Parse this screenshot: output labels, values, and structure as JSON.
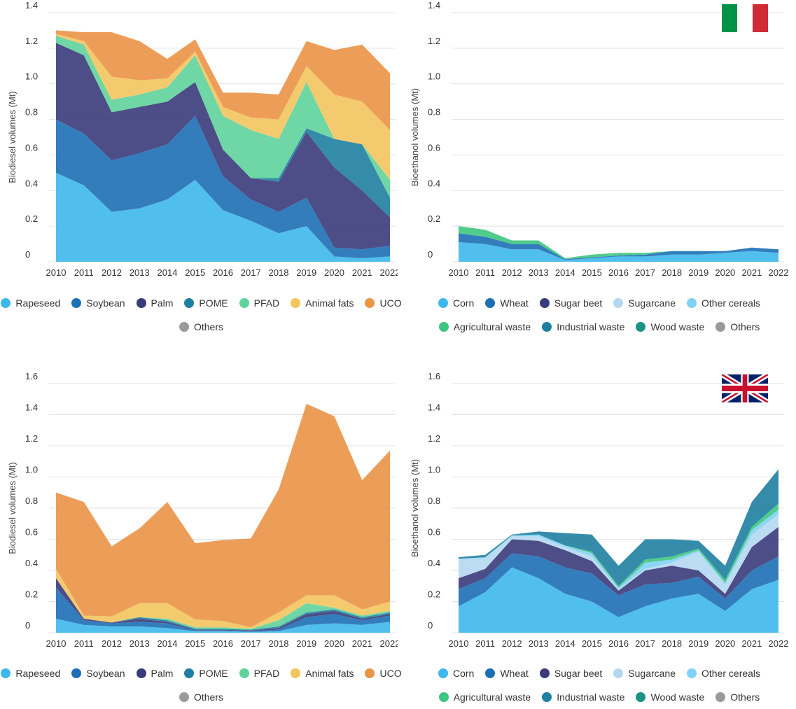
{
  "colors": {
    "Rapeseed": "#3eb8ec",
    "Soybean": "#1d6fb5",
    "Palm": "#3a3b7a",
    "POME": "#1f7fa1",
    "PFAD": "#5fd39b",
    "Animal fats": "#f2c55e",
    "UCO": "#ea9447",
    "Others": "#9a9a9a",
    "Corn": "#3eb8ec",
    "Wheat": "#1d6fb5",
    "Sugar beet": "#3a3b7a",
    "Sugarcane": "#b5d8f2",
    "Other cereals": "#7fd3f5",
    "Agricultural waste": "#3dc67f",
    "Industrial waste": "#1f7fa1",
    "Wood waste": "#1a9482"
  },
  "legend_biodiesel": {
    "row1": [
      "Rapeseed",
      "Soybean",
      "Palm",
      "POME",
      "PFAD",
      "Animal fats",
      "UCO"
    ],
    "row2": [
      "Others"
    ]
  },
  "legend_bioethanol": {
    "row1": [
      "Corn",
      "Wheat",
      "Sugar beet",
      "Sugarcane",
      "Other cereals"
    ],
    "row2": [
      "Agricultural waste",
      "Industrial waste",
      "Wood waste",
      "Others"
    ]
  },
  "chart_data": [
    {
      "type": "area",
      "ylabel": "Biodiesel volumes (Mt)",
      "ylim": [
        0,
        1.4
      ],
      "yticks": [
        "0",
        "0.2",
        "0.4",
        "0.6",
        "0.8",
        "1.0",
        "1.2",
        "1.4"
      ],
      "grid": true,
      "x": [
        "2010",
        "2011",
        "2012",
        "2013",
        "2014",
        "2015",
        "2016",
        "2017",
        "2018",
        "2019",
        "2020",
        "2021",
        "2022"
      ],
      "series": [
        {
          "name": "Rapeseed",
          "values": [
            0.5,
            0.43,
            0.28,
            0.3,
            0.35,
            0.46,
            0.29,
            0.23,
            0.16,
            0.2,
            0.03,
            0.02,
            0.03
          ]
        },
        {
          "name": "Soybean",
          "values": [
            0.3,
            0.29,
            0.29,
            0.31,
            0.31,
            0.36,
            0.19,
            0.12,
            0.12,
            0.16,
            0.05,
            0.05,
            0.06
          ]
        },
        {
          "name": "Palm",
          "values": [
            0.43,
            0.44,
            0.27,
            0.26,
            0.24,
            0.19,
            0.15,
            0.12,
            0.17,
            0.37,
            0.45,
            0.33,
            0.16
          ]
        },
        {
          "name": "POME",
          "values": [
            0.0,
            0.0,
            0.0,
            0.0,
            0.0,
            0.0,
            0.0,
            0.0,
            0.02,
            0.02,
            0.16,
            0.26,
            0.11
          ]
        },
        {
          "name": "PFAD",
          "values": [
            0.04,
            0.06,
            0.07,
            0.07,
            0.08,
            0.15,
            0.19,
            0.27,
            0.22,
            0.26,
            0.0,
            0.0,
            0.1
          ]
        },
        {
          "name": "Animal fats",
          "values": [
            0.01,
            0.02,
            0.13,
            0.08,
            0.05,
            0.02,
            0.05,
            0.07,
            0.11,
            0.09,
            0.25,
            0.24,
            0.28
          ]
        },
        {
          "name": "UCO",
          "values": [
            0.02,
            0.05,
            0.25,
            0.22,
            0.11,
            0.07,
            0.08,
            0.14,
            0.14,
            0.14,
            0.25,
            0.32,
            0.32
          ]
        },
        {
          "name": "Others",
          "values": [
            0,
            0,
            0,
            0,
            0,
            0,
            0,
            0,
            0,
            0,
            0,
            0,
            0
          ]
        }
      ]
    },
    {
      "type": "area",
      "ylabel": "Bioethanol volumes (Mt)",
      "ylim": [
        0,
        1.4
      ],
      "yticks": [
        "0",
        "0.2",
        "0.4",
        "0.6",
        "0.8",
        "1.0",
        "1.2",
        "1.4"
      ],
      "grid": true,
      "flag": "italy",
      "x": [
        "2010",
        "2011",
        "2012",
        "2013",
        "2014",
        "2015",
        "2016",
        "2017",
        "2018",
        "2019",
        "2020",
        "2021",
        "2022"
      ],
      "series": [
        {
          "name": "Corn",
          "values": [
            0.11,
            0.1,
            0.07,
            0.07,
            0.01,
            0.02,
            0.03,
            0.03,
            0.04,
            0.04,
            0.05,
            0.06,
            0.05
          ]
        },
        {
          "name": "Wheat",
          "values": [
            0.05,
            0.04,
            0.03,
            0.03,
            0.005,
            0.005,
            0.005,
            0.01,
            0.02,
            0.02,
            0.01,
            0.02,
            0.02
          ]
        },
        {
          "name": "Sugar beet",
          "values": [
            0,
            0,
            0,
            0,
            0,
            0,
            0,
            0,
            0,
            0,
            0,
            0,
            0
          ]
        },
        {
          "name": "Sugarcane",
          "values": [
            0,
            0,
            0,
            0,
            0,
            0,
            0,
            0,
            0,
            0,
            0,
            0,
            0
          ]
        },
        {
          "name": "Other cereals",
          "values": [
            0,
            0,
            0,
            0,
            0,
            0,
            0,
            0,
            0,
            0,
            0,
            0,
            0
          ]
        },
        {
          "name": "Agricultural waste",
          "values": [
            0.04,
            0.04,
            0.02,
            0.02,
            0.005,
            0.015,
            0.015,
            0.01,
            0,
            0,
            0,
            0,
            0
          ]
        },
        {
          "name": "Industrial waste",
          "values": [
            0,
            0,
            0,
            0,
            0,
            0,
            0,
            0,
            0,
            0,
            0,
            0,
            0
          ]
        },
        {
          "name": "Wood waste",
          "values": [
            0,
            0,
            0,
            0,
            0,
            0,
            0,
            0,
            0,
            0,
            0,
            0,
            0
          ]
        },
        {
          "name": "Others",
          "values": [
            0,
            0,
            0,
            0,
            0,
            0,
            0,
            0,
            0,
            0,
            0,
            0,
            0
          ]
        }
      ]
    },
    {
      "type": "area",
      "ylabel": "Biodiesel volumes (Mt)",
      "ylim": [
        0,
        1.6
      ],
      "yticks": [
        "0",
        "0.2",
        "0.4",
        "0.6",
        "0.8",
        "1.0",
        "1.2",
        "1.4",
        "1.6"
      ],
      "grid": true,
      "x": [
        "2010",
        "2011",
        "2012",
        "2013",
        "2014",
        "2015",
        "2016",
        "2017",
        "2018",
        "2019",
        "2020",
        "2021",
        "2022"
      ],
      "series": [
        {
          "name": "Rapeseed",
          "values": [
            0.09,
            0.05,
            0.04,
            0.04,
            0.03,
            0.01,
            0.01,
            0.005,
            0.01,
            0.05,
            0.06,
            0.05,
            0.07
          ]
        },
        {
          "name": "Soybean",
          "values": [
            0.2,
            0.03,
            0.02,
            0.03,
            0.03,
            0.005,
            0.005,
            0.005,
            0.01,
            0.05,
            0.06,
            0.03,
            0.04
          ]
        },
        {
          "name": "Palm",
          "values": [
            0.06,
            0.01,
            0.005,
            0.02,
            0.01,
            0.005,
            0.005,
            0.005,
            0.01,
            0.02,
            0.02,
            0.01,
            0.01
          ]
        },
        {
          "name": "POME",
          "values": [
            0,
            0,
            0,
            0.01,
            0.01,
            0.005,
            0.005,
            0.005,
            0.01,
            0.01,
            0.01,
            0.01,
            0.01
          ]
        },
        {
          "name": "PFAD",
          "values": [
            0,
            0,
            0,
            0,
            0.01,
            0.01,
            0.01,
            0.005,
            0.04,
            0.06,
            0.01,
            0.01,
            0.01
          ]
        },
        {
          "name": "Animal fats",
          "values": [
            0.06,
            0.02,
            0.04,
            0.09,
            0.1,
            0.05,
            0.04,
            0.01,
            0.05,
            0.05,
            0.08,
            0.04,
            0.06
          ]
        },
        {
          "name": "UCO",
          "values": [
            0.49,
            0.73,
            0.45,
            0.48,
            0.65,
            0.49,
            0.52,
            0.57,
            0.79,
            1.23,
            1.15,
            0.83,
            0.97
          ]
        },
        {
          "name": "Others",
          "values": [
            0,
            0,
            0,
            0,
            0,
            0,
            0,
            0,
            0,
            0,
            0,
            0,
            0
          ]
        }
      ]
    },
    {
      "type": "area",
      "ylabel": "Bioethanol volumes (Mt)",
      "ylim": [
        0,
        1.6
      ],
      "yticks": [
        "0",
        "0.2",
        "0.4",
        "0.6",
        "0.8",
        "1.0",
        "1.2",
        "1.4",
        "1.6"
      ],
      "grid": true,
      "flag": "uk",
      "x": [
        "2010",
        "2011",
        "2012",
        "2013",
        "2014",
        "2015",
        "2016",
        "2017",
        "2018",
        "2019",
        "2020",
        "2021",
        "2022"
      ],
      "series": [
        {
          "name": "Corn",
          "values": [
            0.17,
            0.26,
            0.42,
            0.35,
            0.25,
            0.2,
            0.1,
            0.17,
            0.22,
            0.25,
            0.14,
            0.28,
            0.34
          ]
        },
        {
          "name": "Wheat",
          "values": [
            0.11,
            0.09,
            0.09,
            0.14,
            0.17,
            0.18,
            0.14,
            0.14,
            0.1,
            0.11,
            0.08,
            0.12,
            0.15
          ]
        },
        {
          "name": "Sugar beet",
          "values": [
            0.07,
            0.06,
            0.09,
            0.1,
            0.11,
            0.08,
            0.03,
            0.09,
            0.11,
            0.04,
            0.03,
            0.15,
            0.19
          ]
        },
        {
          "name": "Sugarcane",
          "values": [
            0.12,
            0.07,
            0.02,
            0.03,
            0.02,
            0.03,
            0.01,
            0.01,
            0.02,
            0.12,
            0.06,
            0.08,
            0.08
          ]
        },
        {
          "name": "Other cereals",
          "values": [
            0.005,
            0.005,
            0.005,
            0.01,
            0.01,
            0.02,
            0.01,
            0.04,
            0.02,
            0.01,
            0.01,
            0.03,
            0.03
          ]
        },
        {
          "name": "Agricultural waste",
          "values": [
            0,
            0,
            0,
            0,
            0,
            0.01,
            0.01,
            0.02,
            0.02,
            0.01,
            0.02,
            0.02,
            0.04
          ]
        },
        {
          "name": "Industrial waste",
          "values": [
            0.01,
            0.015,
            0.005,
            0.02,
            0.08,
            0.11,
            0.13,
            0.13,
            0.11,
            0.05,
            0.09,
            0.16,
            0.22
          ]
        },
        {
          "name": "Wood waste",
          "values": [
            0,
            0,
            0,
            0,
            0,
            0,
            0,
            0,
            0,
            0,
            0,
            0,
            0
          ]
        },
        {
          "name": "Others",
          "values": [
            0,
            0,
            0,
            0,
            0,
            0,
            0,
            0,
            0,
            0,
            0,
            0,
            0
          ]
        }
      ]
    }
  ]
}
